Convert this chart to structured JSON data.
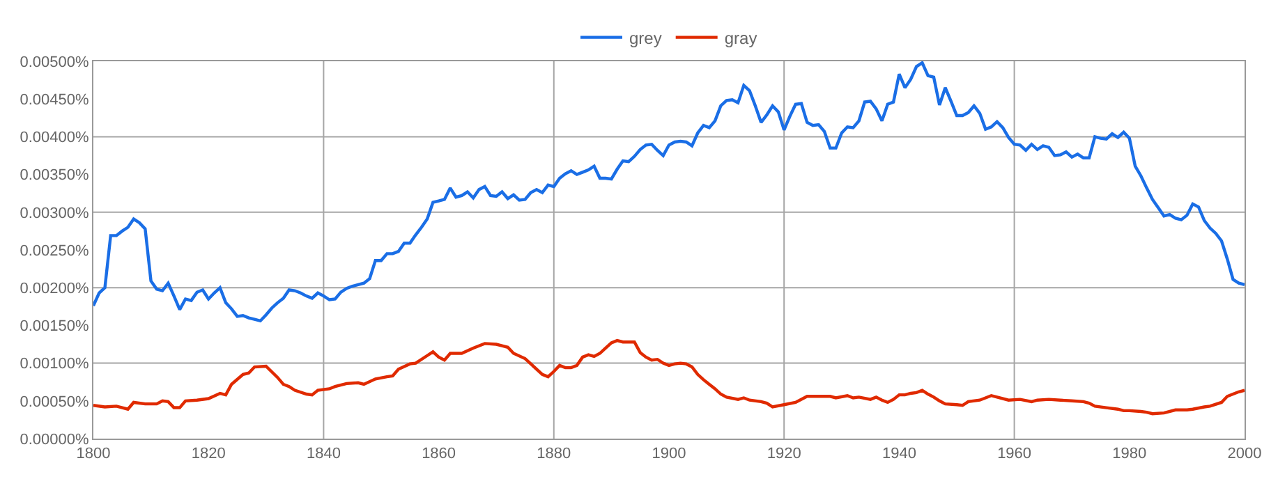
{
  "chart_data": {
    "type": "line",
    "xlim": [
      1800,
      2000
    ],
    "xticks": [
      1800,
      1820,
      1840,
      1860,
      1880,
      1900,
      1920,
      1940,
      1960,
      1980,
      2000
    ],
    "ylim": [
      0,
      0.005
    ],
    "yticks": [
      {
        "value": 0,
        "label": "0.00000%"
      },
      {
        "value": 0.0005,
        "label": "0.00050%"
      },
      {
        "value": 0.001,
        "label": "0.00100%"
      },
      {
        "value": 0.0015,
        "label": "0.00150%"
      },
      {
        "value": 0.002,
        "label": "0.00200%"
      },
      {
        "value": 0.0025,
        "label": "0.00250%"
      },
      {
        "value": 0.003,
        "label": "0.00300%"
      },
      {
        "value": 0.0035,
        "label": "0.00350%"
      },
      {
        "value": 0.004,
        "label": "0.00400%"
      },
      {
        "value": 0.0045,
        "label": "0.00450%"
      },
      {
        "value": 0.005,
        "label": "0.00500%"
      }
    ],
    "grid": true,
    "legend": "top",
    "marker": "none",
    "line_style": "solid",
    "series": [
      {
        "name": "grey",
        "color": "#1a6ee6",
        "x": [
          1800,
          1801,
          1802,
          1803,
          1804,
          1805,
          1806,
          1807,
          1808,
          1809,
          1810,
          1811,
          1812,
          1813,
          1814,
          1815,
          1816,
          1817,
          1818,
          1819,
          1820,
          1821,
          1822,
          1823,
          1824,
          1825,
          1826,
          1827,
          1828,
          1829,
          1830,
          1831,
          1832,
          1833,
          1834,
          1835,
          1836,
          1837,
          1838,
          1839,
          1840,
          1841,
          1842,
          1843,
          1844,
          1845,
          1846,
          1847,
          1848,
          1849,
          1850,
          1851,
          1852,
          1853,
          1854,
          1855,
          1856,
          1857,
          1858,
          1859,
          1860,
          1861,
          1862,
          1863,
          1864,
          1865,
          1866,
          1867,
          1868,
          1869,
          1870,
          1871,
          1872,
          1873,
          1874,
          1875,
          1876,
          1877,
          1878,
          1879,
          1880,
          1881,
          1882,
          1883,
          1884,
          1885,
          1886,
          1887,
          1888,
          1889,
          1890,
          1891,
          1892,
          1893,
          1894,
          1895,
          1896,
          1897,
          1898,
          1899,
          1900,
          1901,
          1902,
          1903,
          1904,
          1905,
          1906,
          1907,
          1908,
          1909,
          1910,
          1911,
          1912,
          1913,
          1914,
          1915,
          1916,
          1917,
          1918,
          1919,
          1920,
          1921,
          1922,
          1923,
          1924,
          1925,
          1926,
          1927,
          1928,
          1929,
          1930,
          1931,
          1932,
          1933,
          1934,
          1935,
          1936,
          1937,
          1938,
          1939,
          1940,
          1941,
          1942,
          1943,
          1944,
          1945,
          1946,
          1947,
          1948,
          1949,
          1950,
          1951,
          1952,
          1953,
          1954,
          1955,
          1956,
          1957,
          1958,
          1959,
          1960,
          1961,
          1962,
          1963,
          1964,
          1965,
          1966,
          1967,
          1968,
          1969,
          1970,
          1971,
          1972,
          1973,
          1974,
          1975,
          1976,
          1977,
          1978,
          1979,
          1980,
          1981,
          1982,
          1983,
          1984,
          1985,
          1986,
          1987,
          1988,
          1989,
          1990,
          1991,
          1992,
          1993,
          1994,
          1995,
          1996,
          1997,
          1998,
          1999,
          2000
        ],
        "values": [
          0.00176,
          0.00193,
          0.002,
          0.00269,
          0.00269,
          0.00275,
          0.0028,
          0.00291,
          0.00286,
          0.00278,
          0.00209,
          0.00198,
          0.00196,
          0.00206,
          0.00189,
          0.00171,
          0.00185,
          0.00183,
          0.00194,
          0.00197,
          0.00185,
          0.00193,
          0.002,
          0.0018,
          0.00172,
          0.00162,
          0.00163,
          0.0016,
          0.00158,
          0.00156,
          0.00164,
          0.00173,
          0.0018,
          0.00186,
          0.00197,
          0.00196,
          0.00193,
          0.00189,
          0.00186,
          0.00193,
          0.00189,
          0.00184,
          0.00185,
          0.00194,
          0.00199,
          0.00202,
          0.00204,
          0.00206,
          0.00212,
          0.00236,
          0.00236,
          0.00245,
          0.00245,
          0.00248,
          0.00259,
          0.00259,
          0.0027,
          0.0028,
          0.00291,
          0.00313,
          0.00315,
          0.00317,
          0.00332,
          0.0032,
          0.00322,
          0.00327,
          0.00319,
          0.0033,
          0.00334,
          0.00322,
          0.00321,
          0.00327,
          0.00318,
          0.00323,
          0.00316,
          0.00317,
          0.00326,
          0.0033,
          0.00326,
          0.00336,
          0.00334,
          0.00345,
          0.00351,
          0.00355,
          0.0035,
          0.00353,
          0.00356,
          0.00361,
          0.00345,
          0.00345,
          0.00344,
          0.00357,
          0.00368,
          0.00367,
          0.00374,
          0.00383,
          0.00389,
          0.0039,
          0.00382,
          0.00375,
          0.00389,
          0.00393,
          0.00394,
          0.00393,
          0.00388,
          0.00405,
          0.00415,
          0.00412,
          0.00421,
          0.00441,
          0.00448,
          0.00449,
          0.00445,
          0.00468,
          0.00461,
          0.00441,
          0.00419,
          0.00429,
          0.00441,
          0.00433,
          0.00409,
          0.00427,
          0.00443,
          0.00444,
          0.00419,
          0.00415,
          0.00416,
          0.00407,
          0.00385,
          0.00385,
          0.00405,
          0.00413,
          0.00412,
          0.00421,
          0.00446,
          0.00447,
          0.00437,
          0.00421,
          0.00443,
          0.00446,
          0.00483,
          0.00465,
          0.00476,
          0.00493,
          0.00498,
          0.00481,
          0.00479,
          0.00442,
          0.00465,
          0.00447,
          0.00428,
          0.00428,
          0.00432,
          0.00441,
          0.00431,
          0.0041,
          0.00413,
          0.0042,
          0.00412,
          0.00399,
          0.0039,
          0.00389,
          0.00382,
          0.0039,
          0.00383,
          0.00388,
          0.00386,
          0.00375,
          0.00376,
          0.0038,
          0.00373,
          0.00377,
          0.00372,
          0.00372,
          0.004,
          0.00398,
          0.00397,
          0.00404,
          0.00399,
          0.00406,
          0.00398,
          0.00361,
          0.00348,
          0.00332,
          0.00317,
          0.00306,
          0.00295,
          0.00297,
          0.00292,
          0.0029,
          0.00296,
          0.00311,
          0.00307,
          0.00289,
          0.00279,
          0.00272,
          0.00262,
          0.00238,
          0.00211,
          0.00206,
          0.00204
        ]
      },
      {
        "name": "gray",
        "color": "#e02a00",
        "x": [
          1800,
          1802,
          1804,
          1806,
          1807,
          1809,
          1811,
          1812,
          1813,
          1814,
          1815,
          1816,
          1818,
          1820,
          1822,
          1823,
          1824,
          1826,
          1827,
          1828,
          1830,
          1832,
          1833,
          1834,
          1835,
          1837,
          1838,
          1839,
          1841,
          1842,
          1844,
          1846,
          1847,
          1849,
          1851,
          1852,
          1853,
          1855,
          1856,
          1858,
          1859,
          1860,
          1861,
          1862,
          1864,
          1866,
          1868,
          1870,
          1871,
          1872,
          1873,
          1875,
          1876,
          1878,
          1879,
          1880,
          1881,
          1882,
          1883,
          1884,
          1885,
          1886,
          1887,
          1888,
          1889,
          1890,
          1891,
          1892,
          1894,
          1895,
          1896,
          1897,
          1898,
          1899,
          1900,
          1901,
          1902,
          1903,
          1904,
          1905,
          1906,
          1907,
          1908,
          1909,
          1910,
          1912,
          1913,
          1914,
          1916,
          1917,
          1918,
          1920,
          1922,
          1924,
          1926,
          1928,
          1929,
          1931,
          1932,
          1933,
          1935,
          1936,
          1937,
          1938,
          1939,
          1940,
          1941,
          1942,
          1943,
          1944,
          1945,
          1946,
          1947,
          1948,
          1950,
          1951,
          1952,
          1954,
          1956,
          1957,
          1959,
          1961,
          1963,
          1964,
          1966,
          1968,
          1970,
          1972,
          1973,
          1974,
          1976,
          1978,
          1979,
          1980,
          1982,
          1983,
          1984,
          1986,
          1988,
          1990,
          1991,
          1993,
          1994,
          1996,
          1997,
          1998,
          1999,
          2000
        ],
        "values": [
          0.00044,
          0.00042,
          0.00043,
          0.00039,
          0.00048,
          0.00046,
          0.00046,
          0.0005,
          0.00049,
          0.00041,
          0.00041,
          0.0005,
          0.00051,
          0.00053,
          0.0006,
          0.00058,
          0.00072,
          0.00085,
          0.00087,
          0.00095,
          0.00096,
          0.00081,
          0.00072,
          0.00069,
          0.00064,
          0.00059,
          0.00058,
          0.00064,
          0.00066,
          0.00069,
          0.00073,
          0.00074,
          0.00072,
          0.00079,
          0.00082,
          0.00083,
          0.00092,
          0.00099,
          0.001,
          0.0011,
          0.00115,
          0.00108,
          0.00104,
          0.00113,
          0.00113,
          0.0012,
          0.00126,
          0.00125,
          0.00123,
          0.00121,
          0.00113,
          0.00106,
          0.00099,
          0.00085,
          0.00082,
          0.00089,
          0.00097,
          0.00094,
          0.00094,
          0.00097,
          0.00108,
          0.00111,
          0.00109,
          0.00113,
          0.0012,
          0.00127,
          0.0013,
          0.00128,
          0.00128,
          0.00114,
          0.00108,
          0.00104,
          0.00105,
          0.001,
          0.00097,
          0.00099,
          0.001,
          0.00099,
          0.00095,
          0.00085,
          0.00078,
          0.00072,
          0.00066,
          0.00059,
          0.00055,
          0.00052,
          0.00054,
          0.00051,
          0.00049,
          0.00047,
          0.00042,
          0.00045,
          0.00048,
          0.00056,
          0.00056,
          0.00056,
          0.00054,
          0.00057,
          0.00054,
          0.00055,
          0.00052,
          0.00055,
          0.00051,
          0.00048,
          0.00052,
          0.00058,
          0.00058,
          0.0006,
          0.00061,
          0.00064,
          0.00059,
          0.00055,
          0.0005,
          0.00046,
          0.00045,
          0.00044,
          0.00049,
          0.00051,
          0.00057,
          0.00055,
          0.00051,
          0.00052,
          0.00049,
          0.00051,
          0.00052,
          0.00051,
          0.0005,
          0.00049,
          0.00047,
          0.00043,
          0.00041,
          0.00039,
          0.00037,
          0.00037,
          0.00036,
          0.00035,
          0.00033,
          0.00034,
          0.00038,
          0.00038,
          0.00039,
          0.00042,
          0.00043,
          0.00048,
          0.00056,
          0.00059,
          0.00062,
          0.00064
        ]
      }
    ]
  }
}
